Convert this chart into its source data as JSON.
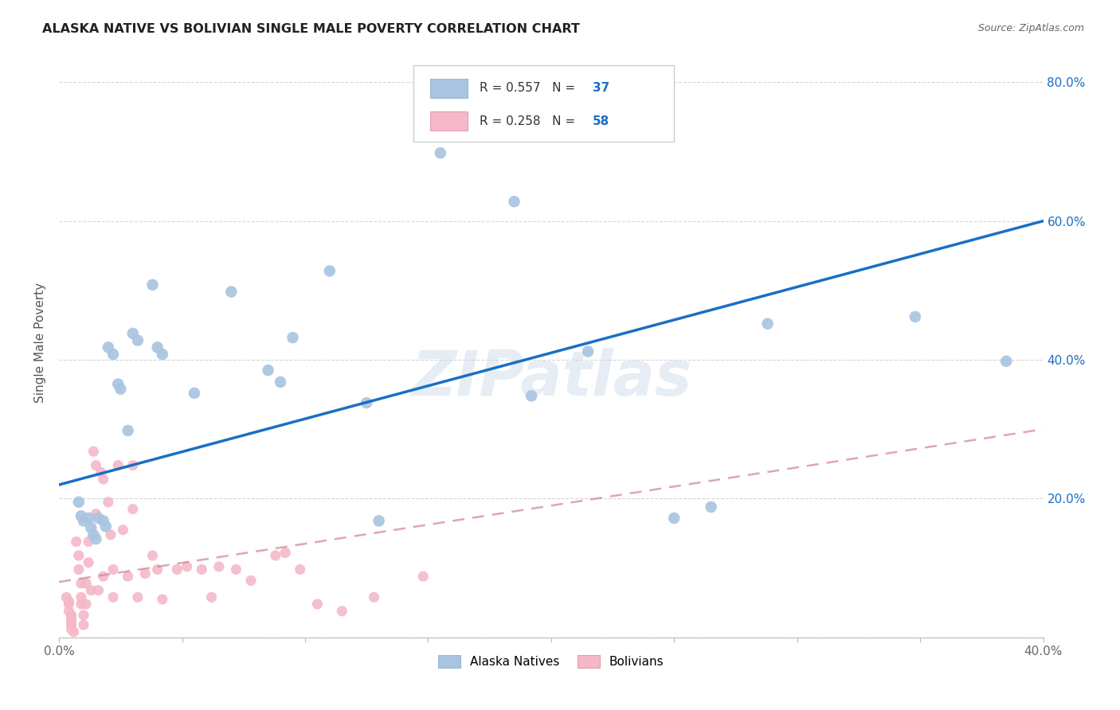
{
  "title": "ALASKA NATIVE VS BOLIVIAN SINGLE MALE POVERTY CORRELATION CHART",
  "source": "Source: ZipAtlas.com",
  "ylabel": "Single Male Poverty",
  "xlim": [
    0.0,
    0.4
  ],
  "ylim": [
    0.0,
    0.85
  ],
  "x_ticks": [
    0.0,
    0.05,
    0.1,
    0.15,
    0.2,
    0.25,
    0.3,
    0.35,
    0.4
  ],
  "y_ticks": [
    0.0,
    0.2,
    0.4,
    0.6,
    0.8
  ],
  "y_tick_labels": [
    "",
    "20.0%",
    "40.0%",
    "60.0%",
    "80.0%"
  ],
  "alaska_R": 0.557,
  "alaska_N": 37,
  "bolivian_R": 0.258,
  "bolivian_N": 58,
  "alaska_color": "#a8c4e0",
  "bolivian_color": "#f4b8c8",
  "alaska_line_color": "#1a6fc4",
  "bolivian_line_color": "#d08090",
  "background_color": "#ffffff",
  "grid_color": "#cccccc",
  "watermark": "ZIPatlas",
  "alaska_line_y0": 0.22,
  "alaska_line_y1": 0.6,
  "bolivian_line_y0": 0.08,
  "bolivian_line_y1": 0.3,
  "alaska_points_x": [
    0.008,
    0.009,
    0.01,
    0.012,
    0.013,
    0.014,
    0.015,
    0.016,
    0.018,
    0.019,
    0.02,
    0.022,
    0.024,
    0.025,
    0.028,
    0.03,
    0.032,
    0.038,
    0.04,
    0.042,
    0.055,
    0.07,
    0.085,
    0.09,
    0.095,
    0.11,
    0.125,
    0.13,
    0.155,
    0.185,
    0.192,
    0.215,
    0.25,
    0.265,
    0.288,
    0.348,
    0.385
  ],
  "alaska_points_y": [
    0.195,
    0.175,
    0.168,
    0.172,
    0.158,
    0.148,
    0.142,
    0.172,
    0.168,
    0.16,
    0.418,
    0.408,
    0.365,
    0.358,
    0.298,
    0.438,
    0.428,
    0.508,
    0.418,
    0.408,
    0.352,
    0.498,
    0.385,
    0.368,
    0.432,
    0.528,
    0.338,
    0.168,
    0.698,
    0.628,
    0.348,
    0.412,
    0.172,
    0.188,
    0.452,
    0.462,
    0.398
  ],
  "bolivian_points_x": [
    0.003,
    0.004,
    0.004,
    0.004,
    0.005,
    0.005,
    0.005,
    0.005,
    0.005,
    0.006,
    0.007,
    0.008,
    0.008,
    0.009,
    0.009,
    0.009,
    0.01,
    0.01,
    0.011,
    0.011,
    0.012,
    0.012,
    0.013,
    0.014,
    0.015,
    0.015,
    0.016,
    0.017,
    0.018,
    0.018,
    0.02,
    0.021,
    0.022,
    0.022,
    0.024,
    0.026,
    0.028,
    0.03,
    0.03,
    0.032,
    0.035,
    0.038,
    0.04,
    0.042,
    0.048,
    0.052,
    0.058,
    0.062,
    0.065,
    0.072,
    0.078,
    0.088,
    0.092,
    0.098,
    0.105,
    0.115,
    0.128,
    0.148
  ],
  "bolivian_points_y": [
    0.058,
    0.052,
    0.048,
    0.038,
    0.032,
    0.028,
    0.022,
    0.018,
    0.012,
    0.008,
    0.138,
    0.118,
    0.098,
    0.078,
    0.058,
    0.048,
    0.032,
    0.018,
    0.078,
    0.048,
    0.138,
    0.108,
    0.068,
    0.268,
    0.248,
    0.178,
    0.068,
    0.238,
    0.228,
    0.088,
    0.195,
    0.148,
    0.098,
    0.058,
    0.248,
    0.155,
    0.088,
    0.248,
    0.185,
    0.058,
    0.092,
    0.118,
    0.098,
    0.055,
    0.098,
    0.102,
    0.098,
    0.058,
    0.102,
    0.098,
    0.082,
    0.118,
    0.122,
    0.098,
    0.048,
    0.038,
    0.058,
    0.088
  ]
}
